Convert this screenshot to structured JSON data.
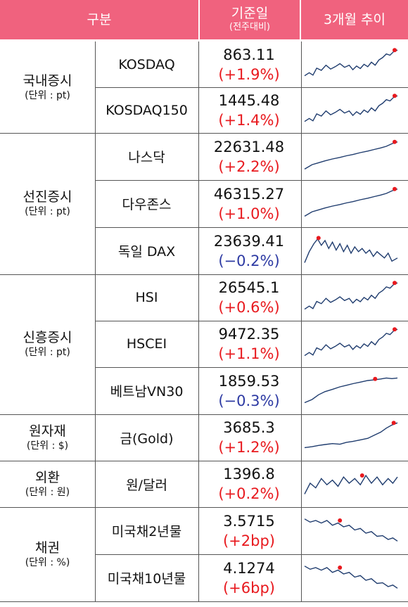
{
  "header": {
    "col_category": "구분",
    "col_base_date": "기준일",
    "col_base_date_sub": "(전주대비)",
    "col_trend": "3개월 추이"
  },
  "colors": {
    "header_bg": "#f0627e",
    "up": "#e8191e",
    "down": "#2d3aa3",
    "line": "#1f3c6e",
    "marker": "#e8191e"
  },
  "groups": [
    {
      "name": "국내증시",
      "unit": "(단위 : pt)",
      "rows": [
        {
          "item": "KOSDAQ",
          "value": "863.11",
          "change": "(+1.9%)",
          "direction": "up",
          "trend_icon": "uptrend-sparkline"
        },
        {
          "item": "KOSDAQ150",
          "value": "1445.48",
          "change": "(+1.4%)",
          "direction": "up",
          "trend_icon": "uptrend-sparkline"
        }
      ]
    },
    {
      "name": "선진증시",
      "unit": "(단위 : pt)",
      "rows": [
        {
          "item": "나스닥",
          "value": "22631.48",
          "change": "(+2.2%)",
          "direction": "up",
          "trend_icon": "steady-uptrend-sparkline"
        },
        {
          "item": "다우존스",
          "value": "46315.27",
          "change": "(+1.0%)",
          "direction": "up",
          "trend_icon": "steady-uptrend-sparkline"
        },
        {
          "item": "독일 DAX",
          "value": "23639.41",
          "change": "(−0.2%)",
          "direction": "down",
          "trend_icon": "volatile-sideways-sparkline"
        }
      ]
    },
    {
      "name": "신흥증시",
      "unit": "(단위 : pt)",
      "rows": [
        {
          "item": "HSI",
          "value": "26545.1",
          "change": "(+0.6%)",
          "direction": "up",
          "trend_icon": "uptrend-sparkline"
        },
        {
          "item": "HSCEI",
          "value": "9472.35",
          "change": "(+1.1%)",
          "direction": "up",
          "trend_icon": "uptrend-sparkline"
        },
        {
          "item": "베트남VN30",
          "value": "1859.53",
          "change": "(−0.3%)",
          "direction": "down",
          "trend_icon": "rise-then-flat-sparkline"
        }
      ]
    },
    {
      "name": "원자재",
      "unit": "(단위 : $)",
      "rows": [
        {
          "item": "금(Gold)",
          "value": "3685.3",
          "change": "(+1.2%)",
          "direction": "up",
          "trend_icon": "late-surge-sparkline"
        }
      ]
    },
    {
      "name": "외환",
      "unit": "(단위 : 원)",
      "rows": [
        {
          "item": "원/달러",
          "value": "1396.8",
          "change": "(+0.2%)",
          "direction": "up",
          "trend_icon": "range-bound-sparkline"
        }
      ]
    },
    {
      "name": "채권",
      "unit": "(단위 : %)",
      "rows": [
        {
          "item": "미국채2년물",
          "value": "3.5715",
          "change": "(+2bp)",
          "direction": "up",
          "trend_icon": "downtrend-sparkline"
        },
        {
          "item": "미국채10년물",
          "value": "4.1274",
          "change": "(+6bp)",
          "direction": "up",
          "trend_icon": "downtrend-sparkline"
        }
      ]
    }
  ]
}
